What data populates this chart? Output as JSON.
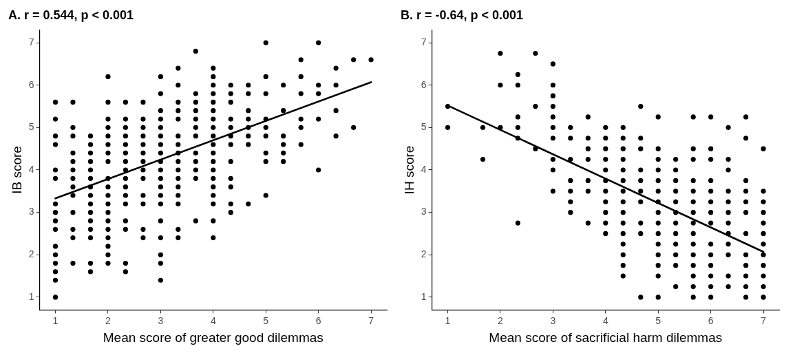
{
  "chart_data": [
    {
      "type": "scatter",
      "title": "A. r = 0.544, p < 0.001",
      "xlabel": "Mean score of greater good dilemmas",
      "ylabel": "IB score",
      "xlim": [
        0.7,
        7.3
      ],
      "ylim": [
        0.7,
        7.3
      ],
      "xticks": [
        1,
        2,
        3,
        4,
        5,
        6,
        7
      ],
      "yticks": [
        1,
        2,
        3,
        4,
        5,
        6,
        7
      ],
      "grid": false,
      "legend": false,
      "series": [
        {
          "color": "#000000",
          "marker": "circle",
          "x": [
            1,
            1,
            1,
            1,
            1,
            1,
            1,
            1,
            1,
            1,
            1,
            1,
            1,
            1,
            1,
            1,
            1.333,
            1.333,
            1.333,
            1.333,
            1.333,
            1.333,
            1.333,
            1.333,
            1.333,
            1.333,
            1.333,
            1.333,
            1.333,
            1.667,
            1.667,
            1.667,
            1.667,
            1.667,
            1.667,
            1.667,
            1.667,
            1.667,
            1.667,
            1.667,
            1.667,
            1.667,
            1.667,
            1.667,
            2,
            2,
            2,
            2,
            2,
            2,
            2,
            2,
            2,
            2,
            2,
            2,
            2,
            2,
            2,
            2,
            2,
            2,
            2,
            2.333,
            2.333,
            2.333,
            2.333,
            2.333,
            2.333,
            2.333,
            2.333,
            2.333,
            2.333,
            2.333,
            2.333,
            2.333,
            2.333,
            2.333,
            2.333,
            2.667,
            2.667,
            2.667,
            2.667,
            2.667,
            2.667,
            2.667,
            2.667,
            2.667,
            2.667,
            2.667,
            2.667,
            2.667,
            3,
            3,
            3,
            3,
            3,
            3,
            3,
            3,
            3,
            3,
            3,
            3,
            3,
            3,
            3,
            3,
            3,
            3,
            3,
            3.333,
            3.333,
            3.333,
            3.333,
            3.333,
            3.333,
            3.333,
            3.333,
            3.333,
            3.333,
            3.333,
            3.333,
            3.333,
            3.333,
            3.333,
            3.333,
            3.667,
            3.667,
            3.667,
            3.667,
            3.667,
            3.667,
            3.667,
            3.667,
            3.667,
            3.667,
            3.667,
            3.667,
            4,
            4,
            4,
            4,
            4,
            4,
            4,
            4,
            4,
            4,
            4,
            4,
            4,
            4,
            4,
            4,
            4,
            4,
            4,
            4.333,
            4.333,
            4.333,
            4.333,
            4.333,
            4.333,
            4.333,
            4.333,
            4.333,
            4.333,
            4.333,
            4.333,
            4.667,
            4.667,
            4.667,
            4.667,
            4.667,
            4.667,
            4.667,
            4.667,
            5,
            5,
            5,
            5,
            5,
            5,
            5,
            5,
            5,
            5.333,
            5.333,
            5.333,
            5.333,
            5.333,
            5.333,
            5.667,
            5.667,
            5.667,
            5.667,
            5.667,
            5.667,
            6,
            6,
            6,
            6,
            6,
            6.333,
            6.333,
            6.333,
            6.333,
            6.667,
            6.667,
            7
          ],
          "values": [
            5.6,
            5.2,
            4.8,
            4.6,
            4.0,
            3.8,
            3.2,
            3.0,
            2.8,
            2.6,
            2.2,
            2.0,
            1.8,
            1.6,
            1.4,
            1.0,
            5.6,
            5.0,
            4.8,
            4.4,
            4.2,
            4.0,
            3.8,
            3.6,
            3.4,
            3.0,
            2.6,
            2.4,
            1.8,
            4.8,
            4.6,
            4.4,
            4.2,
            4.0,
            3.8,
            3.6,
            3.4,
            3.2,
            3.0,
            2.8,
            2.6,
            2.4,
            1.8,
            1.6,
            6.2,
            5.6,
            5.2,
            5.0,
            4.8,
            4.6,
            4.4,
            4.2,
            3.8,
            3.6,
            3.4,
            3.2,
            3.0,
            2.8,
            2.6,
            2.4,
            2.2,
            2.0,
            1.8,
            5.6,
            5.2,
            5.0,
            4.8,
            4.6,
            4.4,
            4.2,
            4.0,
            3.8,
            3.6,
            3.4,
            3.2,
            2.8,
            2.6,
            1.8,
            1.6,
            5.6,
            5.2,
            5.0,
            4.8,
            4.6,
            4.4,
            4.2,
            4.0,
            3.8,
            3.4,
            3.2,
            2.6,
            2.4,
            6.2,
            5.8,
            5.4,
            5.2,
            5.0,
            4.8,
            4.6,
            4.4,
            4.2,
            4.0,
            3.8,
            3.6,
            3.4,
            3.2,
            2.8,
            2.4,
            2.0,
            1.8,
            1.4,
            6.4,
            6.0,
            5.6,
            5.4,
            5.2,
            4.8,
            4.6,
            4.4,
            4.2,
            4.0,
            3.8,
            3.6,
            3.4,
            3.2,
            2.6,
            2.4,
            6.8,
            5.8,
            5.6,
            5.4,
            5.2,
            5.0,
            4.8,
            4.4,
            4.2,
            4.0,
            3.8,
            2.8,
            6.4,
            6.2,
            6.0,
            5.8,
            5.6,
            5.4,
            5.2,
            5.0,
            4.8,
            4.6,
            4.4,
            4.2,
            4.0,
            3.8,
            3.6,
            3.4,
            3.2,
            2.8,
            2.4,
            6.0,
            5.8,
            5.6,
            5.2,
            5.0,
            4.8,
            4.6,
            4.2,
            3.8,
            3.6,
            3.2,
            3.0,
            6.0,
            5.8,
            5.4,
            5.2,
            5.0,
            4.8,
            4.6,
            3.2,
            7.0,
            6.2,
            5.8,
            5.2,
            5.0,
            4.8,
            4.4,
            4.2,
            3.4,
            6.0,
            5.4,
            4.8,
            4.6,
            4.4,
            4.2,
            6.6,
            6.2,
            5.8,
            5.2,
            5.0,
            4.6,
            7.0,
            6.0,
            5.8,
            5.2,
            4.0,
            6.4,
            6.0,
            5.4,
            4.8,
            6.6,
            5.0,
            6.6
          ]
        },
        {
          "type": "line",
          "color": "#000000",
          "x": [
            1,
            7
          ],
          "values": [
            3.33,
            6.07
          ]
        }
      ]
    },
    {
      "type": "scatter",
      "title": "B. r = -0.64, p < 0.001",
      "xlabel": "Mean score of sacrificial harm dilemmas",
      "ylabel": "IH score",
      "xlim": [
        0.7,
        7.3
      ],
      "ylim": [
        0.7,
        7.3
      ],
      "xticks": [
        1,
        2,
        3,
        4,
        5,
        6,
        7
      ],
      "yticks": [
        1,
        2,
        3,
        4,
        5,
        6,
        7
      ],
      "grid": false,
      "legend": false,
      "series": [
        {
          "color": "#000000",
          "marker": "circle",
          "x": [
            1,
            1,
            1.667,
            1.667,
            2,
            2,
            2,
            2.333,
            2.333,
            2.333,
            2.333,
            2.333,
            2.333,
            2.667,
            2.667,
            2.667,
            3,
            3,
            3,
            3,
            3,
            3,
            3,
            3,
            3,
            3,
            3.333,
            3.333,
            3.333,
            3.333,
            3.333,
            3.333,
            3.333,
            3.667,
            3.667,
            3.667,
            3.667,
            3.667,
            3.667,
            3.667,
            4,
            4,
            4,
            4,
            4,
            4,
            4,
            4,
            4,
            4,
            4,
            4.333,
            4.333,
            4.333,
            4.333,
            4.333,
            4.333,
            4.333,
            4.333,
            4.333,
            4.333,
            4.333,
            4.333,
            4.333,
            4.333,
            4.333,
            4.667,
            4.667,
            4.667,
            4.667,
            4.667,
            4.667,
            4.667,
            4.667,
            4.667,
            4.667,
            5,
            5,
            5,
            5,
            5,
            5,
            5,
            5,
            5,
            5,
            5,
            5,
            5,
            5,
            5,
            5.333,
            5.333,
            5.333,
            5.333,
            5.333,
            5.333,
            5.333,
            5.333,
            5.333,
            5.333,
            5.333,
            5.333,
            5.667,
            5.667,
            5.667,
            5.667,
            5.667,
            5.667,
            5.667,
            5.667,
            5.667,
            5.667,
            5.667,
            5.667,
            5.667,
            5.667,
            5.667,
            6,
            6,
            6,
            6,
            6,
            6,
            6,
            6,
            6,
            6,
            6,
            6,
            6,
            6,
            6.333,
            6.333,
            6.333,
            6.333,
            6.333,
            6.333,
            6.333,
            6.333,
            6.333,
            6.333,
            6.333,
            6.333,
            6.667,
            6.667,
            6.667,
            6.667,
            6.667,
            6.667,
            6.667,
            6.667,
            6.667,
            6.667,
            6.667,
            6.667,
            7,
            7,
            7,
            7,
            7,
            7,
            7,
            7,
            7,
            7,
            7,
            7
          ],
          "values": [
            5.5,
            5.0,
            5.0,
            4.25,
            6.75,
            6.0,
            5.0,
            6.25,
            6.0,
            5.25,
            5.0,
            4.75,
            2.75,
            6.75,
            5.5,
            4.5,
            6.5,
            6.0,
            5.75,
            5.5,
            5.25,
            5.0,
            4.75,
            4.25,
            4.0,
            3.5,
            5.0,
            4.75,
            4.25,
            3.75,
            3.5,
            3.25,
            3.0,
            5.25,
            4.75,
            4.5,
            4.25,
            3.75,
            3.5,
            2.75,
            5.0,
            4.75,
            4.5,
            4.25,
            4.0,
            3.75,
            3.5,
            3.25,
            3.0,
            2.75,
            2.5,
            5.0,
            4.75,
            4.5,
            4.25,
            4.0,
            3.75,
            3.5,
            3.25,
            3.0,
            2.75,
            2.5,
            2.25,
            2.0,
            1.75,
            1.5,
            5.5,
            4.75,
            4.5,
            4.0,
            3.75,
            3.5,
            3.25,
            2.75,
            2.5,
            1.0,
            5.25,
            4.5,
            4.25,
            4.0,
            3.75,
            3.5,
            3.25,
            3.0,
            2.75,
            2.5,
            2.25,
            2.0,
            1.75,
            1.5,
            1.0,
            4.25,
            4.0,
            3.75,
            3.5,
            3.25,
            3.0,
            2.75,
            2.5,
            2.25,
            2.0,
            1.75,
            1.25,
            5.25,
            4.5,
            4.25,
            3.75,
            3.5,
            3.25,
            3.0,
            2.75,
            2.5,
            2.25,
            2.0,
            1.75,
            1.5,
            1.25,
            1.0,
            5.25,
            4.5,
            4.25,
            3.75,
            3.5,
            3.25,
            3.0,
            2.75,
            2.25,
            2.0,
            1.75,
            1.5,
            1.25,
            1.0,
            5.0,
            4.25,
            4.0,
            3.5,
            3.25,
            3.0,
            2.75,
            2.5,
            2.25,
            2.0,
            1.5,
            1.25,
            5.25,
            4.75,
            3.75,
            3.5,
            3.25,
            3.0,
            2.5,
            2.0,
            1.75,
            1.5,
            1.25,
            1.0,
            4.5,
            3.5,
            3.25,
            3.0,
            2.75,
            2.5,
            2.25,
            2.0,
            1.75,
            1.5,
            1.25,
            1.0
          ]
        },
        {
          "type": "line",
          "color": "#000000",
          "x": [
            1,
            7
          ],
          "values": [
            5.52,
            2.07
          ]
        }
      ]
    }
  ]
}
